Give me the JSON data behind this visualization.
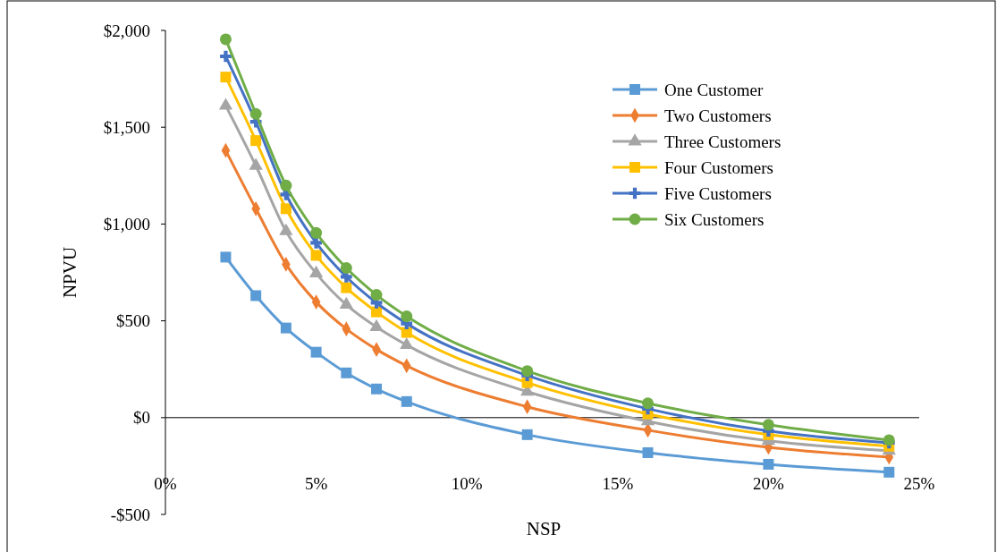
{
  "chart_data": {
    "type": "line",
    "xlabel": "NSP",
    "ylabel": "NPVU",
    "x": [
      2,
      3,
      4,
      5,
      6,
      7,
      8,
      12,
      16,
      20,
      24
    ],
    "xlim": [
      0,
      25
    ],
    "xticks": [
      {
        "value": 0,
        "label": "0%"
      },
      {
        "value": 5,
        "label": "5%"
      },
      {
        "value": 10,
        "label": "10%"
      },
      {
        "value": 15,
        "label": "15%"
      },
      {
        "value": 20,
        "label": "20%"
      },
      {
        "value": 25,
        "label": "25%"
      }
    ],
    "ylim": [
      -500,
      2000
    ],
    "yticks": [
      {
        "value": -500,
        "label": "-$500"
      },
      {
        "value": 0,
        "label": "$0"
      },
      {
        "value": 500,
        "label": "$500"
      },
      {
        "value": 1000,
        "label": "$1,000"
      },
      {
        "value": 1500,
        "label": "$1,500"
      },
      {
        "value": 2000,
        "label": "$2,000"
      }
    ],
    "legend": "top right",
    "series": [
      {
        "name": "One Customer",
        "color": "#5b9bd5",
        "marker": "square",
        "values": [
          829,
          630,
          463,
          338,
          231,
          148,
          83,
          -88,
          -181,
          -241,
          -282
        ]
      },
      {
        "name": "Two Customers",
        "color": "#ed7d31",
        "marker": "diamond",
        "values": [
          1380,
          1079,
          792,
          597,
          458,
          352,
          268,
          56,
          -65,
          -153,
          -204
        ]
      },
      {
        "name": "Three Customers",
        "color": "#a5a5a5",
        "marker": "triangle",
        "values": [
          1611,
          1301,
          963,
          745,
          583,
          468,
          375,
          134,
          -19,
          -120,
          -171
        ]
      },
      {
        "name": "Four Customers",
        "color": "#ffc000",
        "marker": "square",
        "values": [
          1759,
          1431,
          1079,
          838,
          671,
          546,
          440,
          181,
          19,
          -88,
          -148
        ]
      },
      {
        "name": "Five Customers",
        "color": "#4472c4",
        "marker": "cross",
        "values": [
          1866,
          1528,
          1153,
          903,
          727,
          593,
          486,
          218,
          46,
          -69,
          -130
        ]
      },
      {
        "name": "Six Customers",
        "color": "#70ad47",
        "marker": "circle",
        "values": [
          1954,
          1569,
          1199,
          954,
          773,
          634,
          523,
          241,
          74,
          -37,
          -116
        ]
      }
    ]
  }
}
